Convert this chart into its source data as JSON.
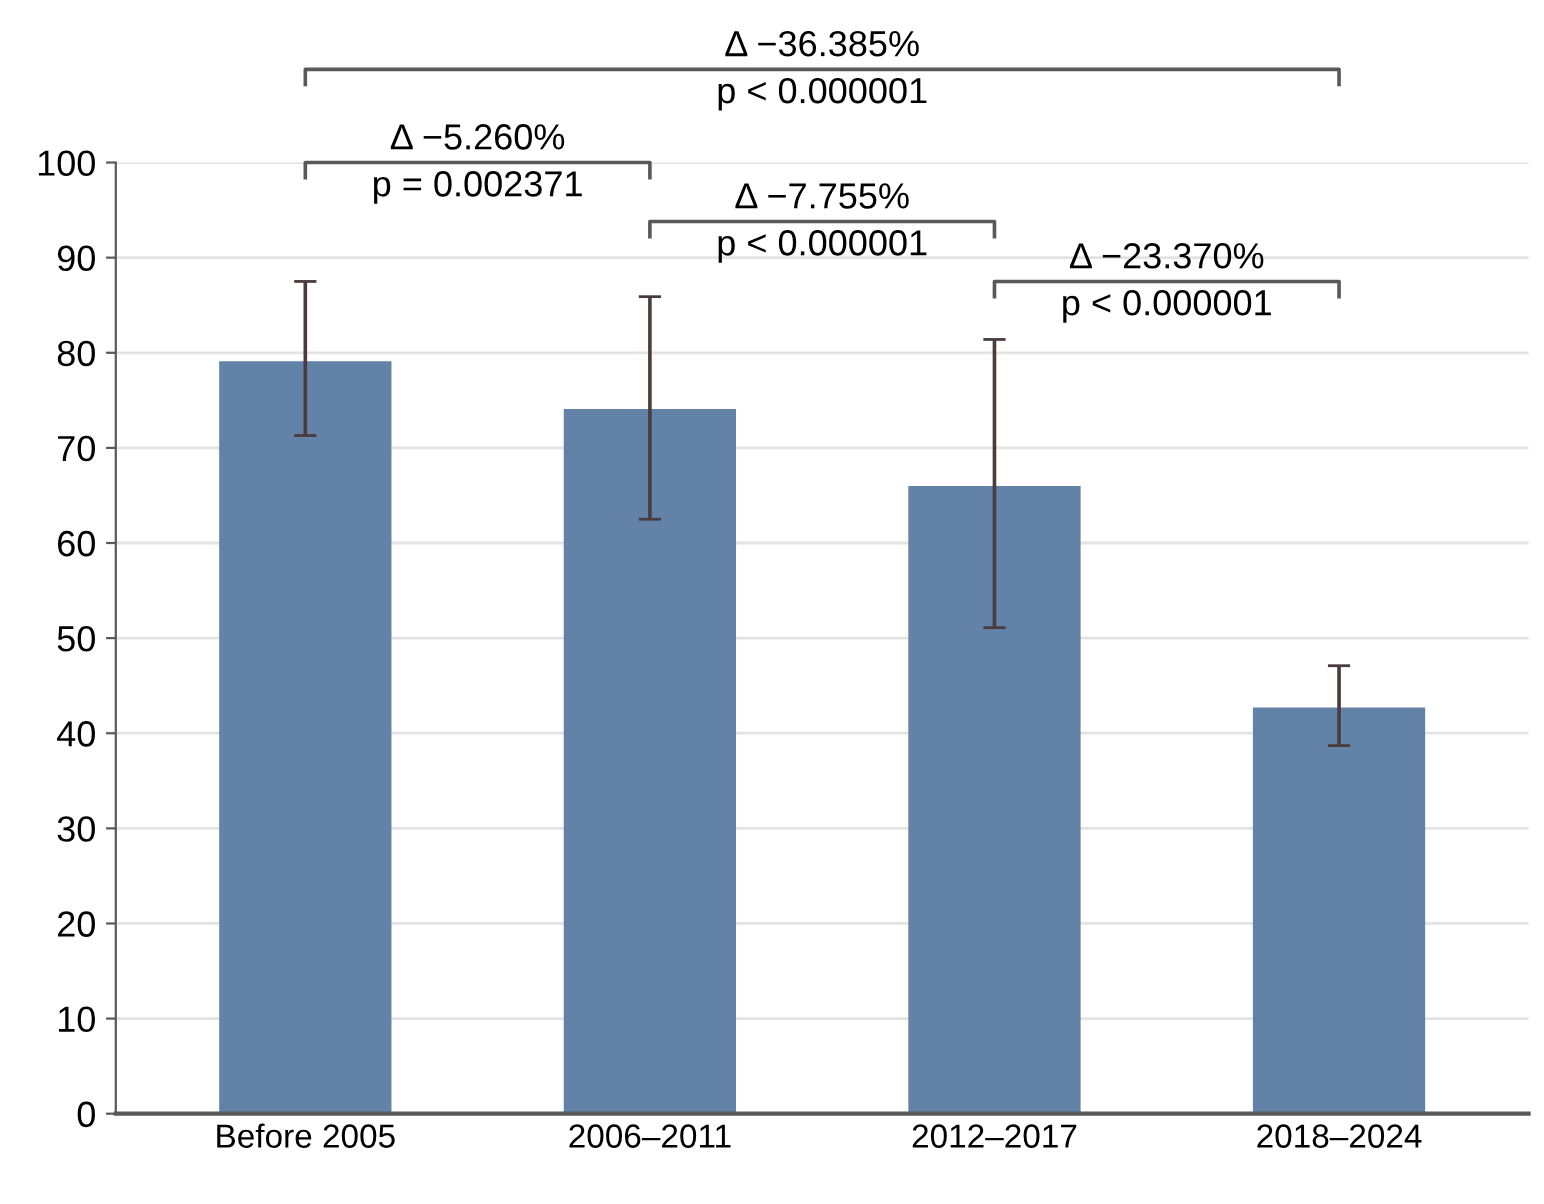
{
  "chart_data": {
    "type": "bar",
    "categories": [
      "Before 2005",
      "2006–2011",
      "2012–2017",
      "2018–2024"
    ],
    "values": [
      79.1,
      74.1,
      66.0,
      42.7
    ],
    "errors": [
      [
        71.3,
        87.5
      ],
      [
        62.5,
        85.9
      ],
      [
        51.1,
        81.4
      ],
      [
        38.7,
        47.1
      ]
    ],
    "color": "#6282a8",
    "ylim": [
      0,
      100
    ],
    "yticks": [
      0,
      10,
      20,
      30,
      40,
      50,
      60,
      70,
      80,
      90,
      100
    ],
    "grid": "y",
    "legend": false,
    "annotations": [
      "Δ −36.385%\np < 0.000001",
      "Δ −5.260%\np = 0.002371",
      "Δ −7.755%\np < 0.000001",
      "Δ −23.370%\np < 0.000001"
    ]
  }
}
